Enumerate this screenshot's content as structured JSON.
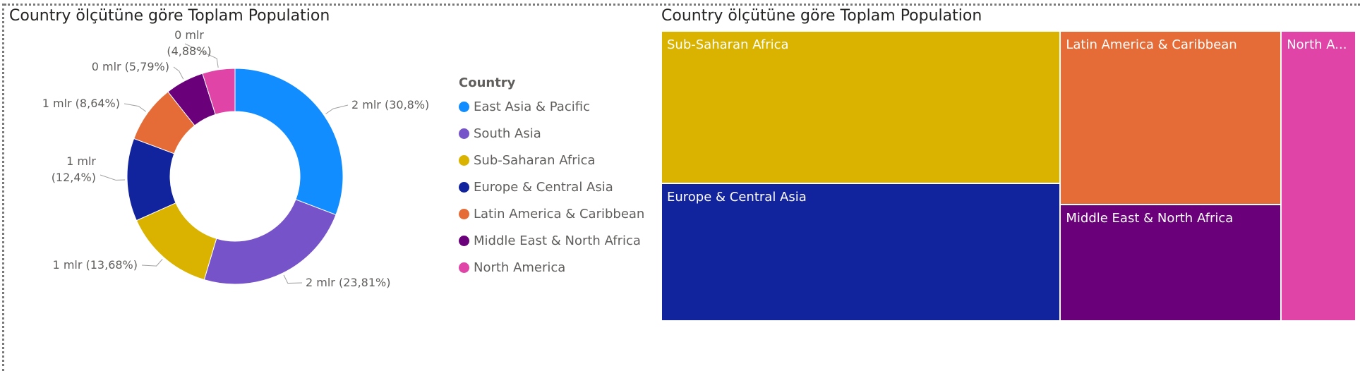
{
  "colors": {
    "East Asia & Pacific": "#118DFF",
    "South Asia": "#7653C8",
    "Sub-Saharan Africa": "#D9B300",
    "Europe & Central Asia": "#12239E",
    "Latin America & Caribbean": "#E66C37",
    "Middle East & North Africa": "#6B007B",
    "North America": "#E044A7"
  },
  "chart_data": [
    {
      "type": "pie",
      "variant": "donut",
      "title": "Country ölçütüne göre Toplam Population",
      "legend_title": "Country",
      "legend_position": "right",
      "categories": [
        "East Asia & Pacific",
        "South Asia",
        "Sub-Saharan Africa",
        "Europe & Central Asia",
        "Latin America & Caribbean",
        "Middle East & North Africa",
        "North America"
      ],
      "values": [
        30.8,
        23.81,
        13.68,
        12.4,
        8.64,
        5.79,
        4.88
      ],
      "data_labels": [
        "2 mlr (30,8%)",
        "2 mlr (23,81%)",
        "1 mlr (13,68%)",
        "1 mlr (12,4%)",
        "1 mlr (8,64%)",
        "0 mlr (5,79%)",
        "0 mlr (4,88%)"
      ]
    },
    {
      "type": "treemap",
      "title": "Country ölçütüne göre Toplam Population",
      "categories": [
        "Sub-Saharan Africa",
        "Europe & Central Asia",
        "Latin America & Caribbean",
        "Middle East & North Africa",
        "North America"
      ],
      "labels": [
        "Sub-Saharan Africa",
        "Europe & Central Asia",
        "Latin America & Caribbean",
        "Middle East & North Africa",
        "North A..."
      ],
      "values": [
        13.68,
        12.4,
        8.64,
        5.79,
        4.88
      ]
    }
  ]
}
